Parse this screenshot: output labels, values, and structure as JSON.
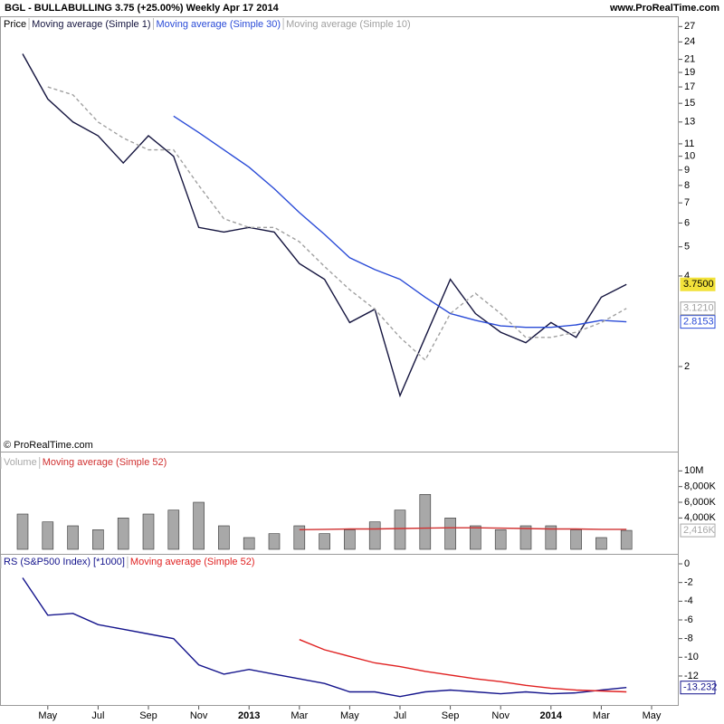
{
  "header": {
    "title": "BGL - BULLABULLING    3.75 (+25.00%)    Weekly  Apr 17 2014",
    "site": "www.ProRealTime.com"
  },
  "copyright": "© ProRealTime.com",
  "chart_data": [
    {
      "type": "line",
      "label": "Price",
      "log": true,
      "ylim": [
        1.05,
        29.2
      ],
      "yticks": [
        27,
        24,
        21,
        19,
        17,
        15,
        13,
        11,
        10,
        9,
        8,
        7,
        6,
        5,
        4,
        2
      ],
      "series": [
        {
          "name": "Moving average (Simple 1)",
          "color": "#15153f",
          "label_color": "#f2e23a",
          "last_label": "3.7500",
          "values": [
            21.9,
            15.5,
            13,
            11.7,
            9.5,
            11.7,
            10,
            5.8,
            5.6,
            5.8,
            5.6,
            4.4,
            3.9,
            2.8,
            3.1,
            1.6,
            2.5,
            3.9,
            3.0,
            2.6,
            2.4,
            2.8,
            2.5,
            3.4,
            3.75,
            null
          ]
        },
        {
          "name": "Moving average (Simple 30)",
          "color": "#2a4bd7",
          "label_color": "#2a4bd7",
          "last_label": "2.8153",
          "values": [
            null,
            null,
            null,
            null,
            null,
            null,
            13.6,
            12,
            10.5,
            9.2,
            7.8,
            6.5,
            5.5,
            4.6,
            4.2,
            3.9,
            3.4,
            3.0,
            2.85,
            2.73,
            2.7,
            2.7,
            2.75,
            2.85,
            2.8153,
            null
          ]
        },
        {
          "name": "Moving average (Simple 10)",
          "color": "#a0a0a0",
          "label_color": "#a0a0a0",
          "dash": true,
          "last_label": "3.1210",
          "values": [
            null,
            17,
            16,
            13,
            11.5,
            10.5,
            10.5,
            8,
            6.2,
            5.8,
            5.8,
            5.2,
            4.3,
            3.6,
            3.1,
            2.5,
            2.1,
            3.0,
            3.5,
            3.0,
            2.5,
            2.5,
            2.6,
            2.8,
            3.121,
            null
          ]
        }
      ]
    },
    {
      "type": "bar",
      "ylim": [
        0,
        12000000
      ],
      "yticks": [
        {
          "value": 10000000,
          "label": "10M"
        },
        {
          "value": 8000000,
          "label": "8,000K"
        },
        {
          "value": 6000000,
          "label": "6,000K"
        },
        {
          "value": 4000000,
          "label": "4,000K"
        }
      ],
      "series": [
        {
          "name": "Volume",
          "color": "#a8a8a8",
          "style": "bar",
          "label_color": "#a8a8a8",
          "last_label": "2,416K",
          "values": [
            4500000,
            3500000,
            3000000,
            2500000,
            4000000,
            4500000,
            5000000,
            6000000,
            3000000,
            1500000,
            2000000,
            3000000,
            2000000,
            2500000,
            3500000,
            5000000,
            7000000,
            4000000,
            3000000,
            2500000,
            3000000,
            3000000,
            2500000,
            1500000,
            2416000,
            null
          ]
        },
        {
          "name": "Moving average (Simple 52)",
          "color": "#d03030",
          "style": "line",
          "values": [
            null,
            null,
            null,
            null,
            null,
            null,
            null,
            null,
            null,
            null,
            null,
            2500000,
            2550000,
            2600000,
            2600000,
            2650000,
            2700000,
            2750000,
            2750000,
            2700000,
            2650000,
            2600000,
            2600000,
            2550000,
            2550000,
            null
          ]
        }
      ]
    },
    {
      "type": "line",
      "ylim": [
        -16.36,
        0.97
      ],
      "yticks": [
        0,
        -2,
        -4,
        -6,
        -8,
        -10,
        -12
      ],
      "categories": [
        null,
        "May",
        null,
        "Jul",
        null,
        "Sep",
        null,
        "Nov",
        null,
        "2013",
        null,
        "Mar",
        null,
        "May",
        null,
        "Jul",
        null,
        "Sep",
        null,
        "Nov",
        null,
        "2014",
        null,
        "Mar",
        null,
        "May"
      ],
      "series": [
        {
          "name": "RS (S&P500 Index) [*1000]",
          "color": "#14148c",
          "label_color": "#14148c",
          "last_label": "-13.232",
          "values": [
            -1.5,
            -5.5,
            -5.3,
            -6.5,
            -7,
            -7.5,
            -8,
            -10.8,
            -11.8,
            -11.3,
            -11.8,
            -12.3,
            -12.8,
            -13.7,
            -13.7,
            -14.2,
            -13.7,
            -13.5,
            -13.7,
            -13.9,
            -13.7,
            -13.9,
            -13.8,
            -13.5,
            -13.232,
            null
          ]
        },
        {
          "name": "Moving average (Simple 52)",
          "color": "#e02020",
          "values": [
            null,
            null,
            null,
            null,
            null,
            null,
            null,
            null,
            null,
            null,
            null,
            -8.1,
            -9.2,
            -9.9,
            -10.6,
            -11,
            -11.5,
            -11.9,
            -12.3,
            -12.6,
            -13,
            -13.3,
            -13.5,
            -13.6,
            -13.7,
            null
          ]
        }
      ]
    }
  ]
}
